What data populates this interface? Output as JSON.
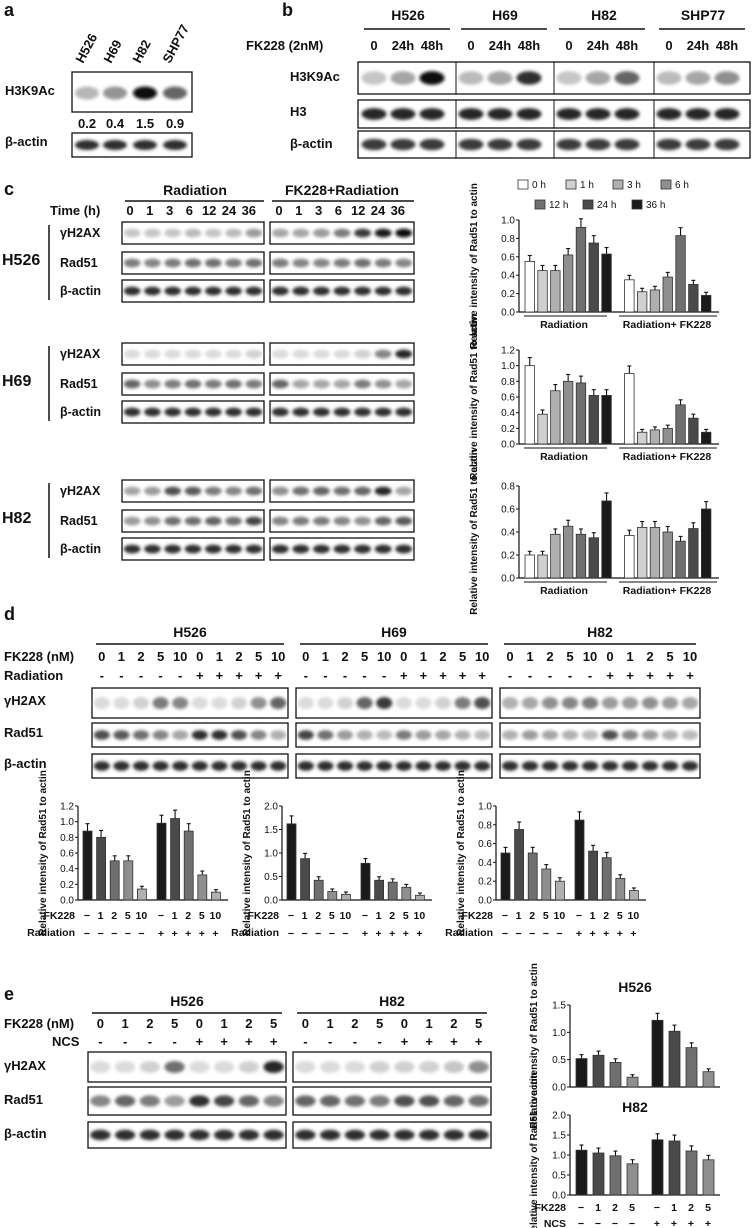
{
  "colors": {
    "black": "#111111",
    "band": "#1c1c1c"
  },
  "panel_labels": {
    "a": "a",
    "b": "b",
    "c": "c",
    "d": "d",
    "e": "e"
  },
  "panel_a": {
    "lanes": [
      "H526",
      "H69",
      "H82",
      "SHP77"
    ],
    "rows": [
      "H3K9Ac",
      "β-actin"
    ],
    "values": [
      "0.2",
      "0.4",
      "1.5",
      "0.9"
    ],
    "band_intensity": [
      0.22,
      0.38,
      1.0,
      0.6
    ]
  },
  "panel_b": {
    "groups": [
      "H526",
      "H69",
      "H82",
      "SHP77"
    ],
    "condition": "FK228 (2nM)",
    "times": [
      "0",
      "24h",
      "48h"
    ],
    "rows": [
      "H3K9Ac",
      "H3",
      "β-actin"
    ],
    "h3k9ac_intensity": [
      [
        0.15,
        0.3,
        1.0
      ],
      [
        0.2,
        0.3,
        0.85
      ],
      [
        0.15,
        0.3,
        0.6
      ],
      [
        0.2,
        0.3,
        0.4
      ]
    ]
  },
  "panel_c": {
    "headers": [
      "Radiation",
      "FK228+Radiation"
    ],
    "time_label": "Time (h)",
    "times": [
      "0",
      "1",
      "3",
      "6",
      "12",
      "24",
      "36"
    ],
    "rows": [
      "γH2AX",
      "Rad51",
      "β-actin"
    ],
    "cells": [
      "H526",
      "H69",
      "H82"
    ],
    "blot_intensity": {
      "H526": {
        "gamma": [
          0.15,
          0.15,
          0.15,
          0.2,
          0.15,
          0.2,
          0.35,
          0.3,
          0.3,
          0.35,
          0.5,
          0.8,
          0.95,
          1.0
        ],
        "rad51": [
          0.5,
          0.45,
          0.5,
          0.55,
          0.55,
          0.5,
          0.55,
          0.5,
          0.45,
          0.45,
          0.5,
          0.55,
          0.5,
          0.45
        ]
      },
      "H69": {
        "gamma": [
          0.05,
          0.05,
          0.05,
          0.05,
          0.05,
          0.05,
          0.1,
          0.05,
          0.05,
          0.05,
          0.05,
          0.1,
          0.45,
          0.9
        ],
        "rad51": [
          0.6,
          0.4,
          0.5,
          0.55,
          0.5,
          0.55,
          0.5,
          0.6,
          0.3,
          0.3,
          0.3,
          0.5,
          0.4,
          0.3
        ]
      },
      "H82": {
        "gamma": [
          0.3,
          0.35,
          0.7,
          0.65,
          0.5,
          0.45,
          0.55,
          0.4,
          0.55,
          0.6,
          0.55,
          0.6,
          0.9,
          0.3
        ],
        "rad51": [
          0.35,
          0.4,
          0.55,
          0.55,
          0.6,
          0.55,
          0.75,
          0.45,
          0.5,
          0.5,
          0.45,
          0.4,
          0.6,
          0.65
        ]
      }
    },
    "legend": [
      "0 h",
      "1 h",
      "3 h",
      "6 h",
      "12 h",
      "24 h",
      "36 h"
    ],
    "bar_shades": [
      "#ffffff",
      "#d0d0d0",
      "#b0b0b0",
      "#8f8f8f",
      "#6f6f6f",
      "#4a4a4a",
      "#1a1a1a"
    ]
  },
  "panel_d": {
    "groups": [
      "H526",
      "H69",
      "H82"
    ],
    "fk_label": "FK228 (nM)",
    "rad_label": "Radiation",
    "doses": [
      "0",
      "1",
      "2",
      "5",
      "10",
      "0",
      "1",
      "2",
      "5",
      "10"
    ],
    "rad_signs": [
      "-",
      "-",
      "-",
      "-",
      "-",
      "+",
      "+",
      "+",
      "+",
      "+"
    ],
    "rows": [
      "γH2AX",
      "Rad51",
      "β-actin"
    ],
    "blot_intensity": {
      "H526": {
        "gamma": [
          0.05,
          0.05,
          0.1,
          0.5,
          0.45,
          0.05,
          0.05,
          0.1,
          0.4,
          0.6
        ],
        "rad51": [
          0.7,
          0.65,
          0.55,
          0.45,
          0.3,
          0.85,
          0.85,
          0.7,
          0.45,
          0.25
        ]
      },
      "H69": {
        "gamma": [
          0.05,
          0.05,
          0.1,
          0.6,
          0.8,
          0.05,
          0.05,
          0.1,
          0.5,
          0.7
        ],
        "rad51": [
          0.75,
          0.55,
          0.35,
          0.25,
          0.2,
          0.5,
          0.35,
          0.3,
          0.25,
          0.2
        ]
      },
      "H82": {
        "gamma": [
          0.25,
          0.3,
          0.4,
          0.45,
          0.5,
          0.35,
          0.35,
          0.4,
          0.35,
          0.3
        ],
        "rad51": [
          0.25,
          0.35,
          0.3,
          0.25,
          0.2,
          0.7,
          0.45,
          0.35,
          0.25,
          0.2
        ]
      }
    },
    "x_fk": [
      "−",
      "1",
      "2",
      "5",
      "10",
      "−",
      "1",
      "2",
      "5",
      "10"
    ],
    "x_fk_label": "FK228",
    "x_rad_label": "Radiation"
  },
  "panel_e": {
    "groups": [
      "H526",
      "H82"
    ],
    "fk_label": "FK228 (nM)",
    "ncs_label": "NCS",
    "doses": [
      "0",
      "1",
      "2",
      "5",
      "0",
      "1",
      "2",
      "5"
    ],
    "ncs_signs": [
      "-",
      "-",
      "-",
      "-",
      "+",
      "+",
      "+",
      "+"
    ],
    "rows": [
      "γH2AX",
      "Rad51",
      "β-actin"
    ],
    "blot_intensity": {
      "H526": {
        "gamma": [
          0.05,
          0.05,
          0.1,
          0.55,
          0.05,
          0.05,
          0.1,
          0.9
        ],
        "rad51": [
          0.45,
          0.6,
          0.5,
          0.35,
          0.85,
          0.75,
          0.6,
          0.45
        ]
      },
      "H82": {
        "gamma": [
          0.05,
          0.05,
          0.05,
          0.1,
          0.1,
          0.1,
          0.15,
          0.4
        ],
        "rad51": [
          0.6,
          0.6,
          0.55,
          0.5,
          0.7,
          0.7,
          0.6,
          0.55
        ]
      }
    },
    "x_fk": [
      "−",
      "1",
      "2",
      "5",
      "−",
      "1",
      "2",
      "5"
    ],
    "x_ncs": [
      "−",
      "−",
      "−",
      "−",
      "+",
      "+",
      "+",
      "+"
    ],
    "x_fk_label": "FK228",
    "x_ncs_label": "NCS"
  },
  "chart_data": [
    {
      "id": "c_H526",
      "type": "bar",
      "title": "",
      "ylabel": "Relative intensity of Rad51 to actin",
      "ylim": [
        0,
        1.0
      ],
      "yticks": [
        "0.0",
        "0.1",
        "0.2",
        "0.3",
        "0.4",
        "0.5",
        "0.6",
        "0.7",
        "0.8",
        "0.9",
        "1.0"
      ],
      "groups": [
        "Radiation",
        "Radiation+ FK228"
      ],
      "categories": [
        "0 h",
        "1 h",
        "3 h",
        "6 h",
        "12 h",
        "24 h",
        "36 h"
      ],
      "series": [
        {
          "name": "Radiation",
          "values": [
            0.55,
            0.45,
            0.45,
            0.62,
            0.92,
            0.75,
            0.63
          ]
        },
        {
          "name": "Radiation+ FK228",
          "values": [
            0.35,
            0.22,
            0.24,
            0.38,
            0.83,
            0.3,
            0.18
          ]
        }
      ]
    },
    {
      "id": "c_H69",
      "type": "bar",
      "title": "",
      "ylabel": "Relative intensity of Rad51 to actin",
      "ylim": [
        0,
        1.2
      ],
      "yticks": [
        "0.0",
        "0.2",
        "0.4",
        "0.6",
        "0.8",
        "1.0",
        "1.2"
      ],
      "groups": [
        "Radiation",
        "Radiation+ FK228"
      ],
      "categories": [
        "0 h",
        "1 h",
        "3 h",
        "6 h",
        "12 h",
        "24 h",
        "36 h"
      ],
      "series": [
        {
          "name": "Radiation",
          "values": [
            1.0,
            0.38,
            0.68,
            0.8,
            0.78,
            0.62,
            0.62
          ]
        },
        {
          "name": "Radiation+ FK228",
          "values": [
            0.9,
            0.15,
            0.18,
            0.2,
            0.5,
            0.33,
            0.15
          ]
        }
      ]
    },
    {
      "id": "c_H82",
      "type": "bar",
      "title": "",
      "ylabel": "Relative intensity of Rad51 to actin",
      "ylim": [
        0,
        0.8
      ],
      "yticks": [
        "0.0",
        "0.2",
        "0.4",
        "0.6",
        "0.8"
      ],
      "groups": [
        "Radiation",
        "Radiation+ FK228"
      ],
      "categories": [
        "0 h",
        "1 h",
        "3 h",
        "6 h",
        "12 h",
        "24 h",
        "36 h"
      ],
      "series": [
        {
          "name": "Radiation",
          "values": [
            0.2,
            0.2,
            0.38,
            0.45,
            0.38,
            0.35,
            0.67
          ]
        },
        {
          "name": "Radiation+ FK228",
          "values": [
            0.37,
            0.44,
            0.44,
            0.4,
            0.32,
            0.43,
            0.6
          ]
        }
      ]
    },
    {
      "id": "d_H526",
      "type": "bar",
      "title": "",
      "ylabel": "Relative intensity of Rad51 to actin",
      "ylim": [
        0,
        1.2
      ],
      "yticks": [
        "0.0",
        "0.2",
        "0.4",
        "0.6",
        "0.8",
        "1.0",
        "1.2"
      ],
      "x_fk": [
        "−",
        "1",
        "2",
        "5",
        "10",
        "−",
        "1",
        "2",
        "5",
        "10"
      ],
      "x_radiation": [
        "−",
        "−",
        "−",
        "−",
        "−",
        "+",
        "+",
        "+",
        "+",
        "+"
      ],
      "values": [
        0.88,
        0.8,
        0.5,
        0.5,
        0.14,
        0.98,
        1.04,
        0.88,
        0.32,
        0.1
      ]
    },
    {
      "id": "d_H69",
      "type": "bar",
      "title": "",
      "ylabel": "Relative intensity of Rad51 to actin",
      "ylim": [
        0,
        2.0
      ],
      "yticks": [
        "0.0",
        "0.5",
        "1.0",
        "1.5",
        "2.0"
      ],
      "x_fk": [
        "−",
        "1",
        "2",
        "5",
        "10",
        "−",
        "1",
        "2",
        "5",
        "10"
      ],
      "x_radiation": [
        "−",
        "−",
        "−",
        "−",
        "−",
        "+",
        "+",
        "+",
        "+",
        "+"
      ],
      "values": [
        1.62,
        0.88,
        0.42,
        0.18,
        0.12,
        0.78,
        0.42,
        0.38,
        0.27,
        0.1
      ]
    },
    {
      "id": "d_H82",
      "type": "bar",
      "title": "",
      "ylabel": "Relative intensity of Rad51 to actin",
      "ylim": [
        0,
        1.0
      ],
      "yticks": [
        "0.0",
        "0.2",
        "0.4",
        "0.6",
        "0.8",
        "1.0"
      ],
      "x_fk": [
        "−",
        "1",
        "2",
        "5",
        "10",
        "−",
        "1",
        "2",
        "5",
        "10"
      ],
      "x_radiation": [
        "−",
        "−",
        "−",
        "−",
        "−",
        "+",
        "+",
        "+",
        "+",
        "+"
      ],
      "values": [
        0.5,
        0.75,
        0.5,
        0.33,
        0.2,
        0.85,
        0.52,
        0.45,
        0.23,
        0.1
      ]
    },
    {
      "id": "e_H526",
      "type": "bar",
      "title": "H526",
      "ylabel": "Relative intensity of Rad51 to actin",
      "ylim": [
        0,
        1.5
      ],
      "yticks": [
        "0.0",
        "0.5",
        "1.0",
        "1.5"
      ],
      "x_fk": [
        "−",
        "1",
        "2",
        "5",
        "−",
        "1",
        "2",
        "5"
      ],
      "x_ncs": [
        "−",
        "−",
        "−",
        "−",
        "+",
        "+",
        "+",
        "+"
      ],
      "values": [
        0.52,
        0.58,
        0.45,
        0.18,
        1.22,
        1.02,
        0.72,
        0.28
      ]
    },
    {
      "id": "e_H82",
      "type": "bar",
      "title": "H82",
      "ylabel": "Relative intensity of Rad51 to actin",
      "ylim": [
        0,
        2.0
      ],
      "yticks": [
        "0.0",
        "0.5",
        "1.0",
        "1.5",
        "2.0"
      ],
      "x_fk": [
        "−",
        "1",
        "2",
        "5",
        "−",
        "1",
        "2",
        "5"
      ],
      "x_ncs": [
        "−",
        "−",
        "−",
        "−",
        "+",
        "+",
        "+",
        "+"
      ],
      "values": [
        1.12,
        1.05,
        0.98,
        0.78,
        1.38,
        1.35,
        1.1,
        0.88
      ]
    }
  ]
}
